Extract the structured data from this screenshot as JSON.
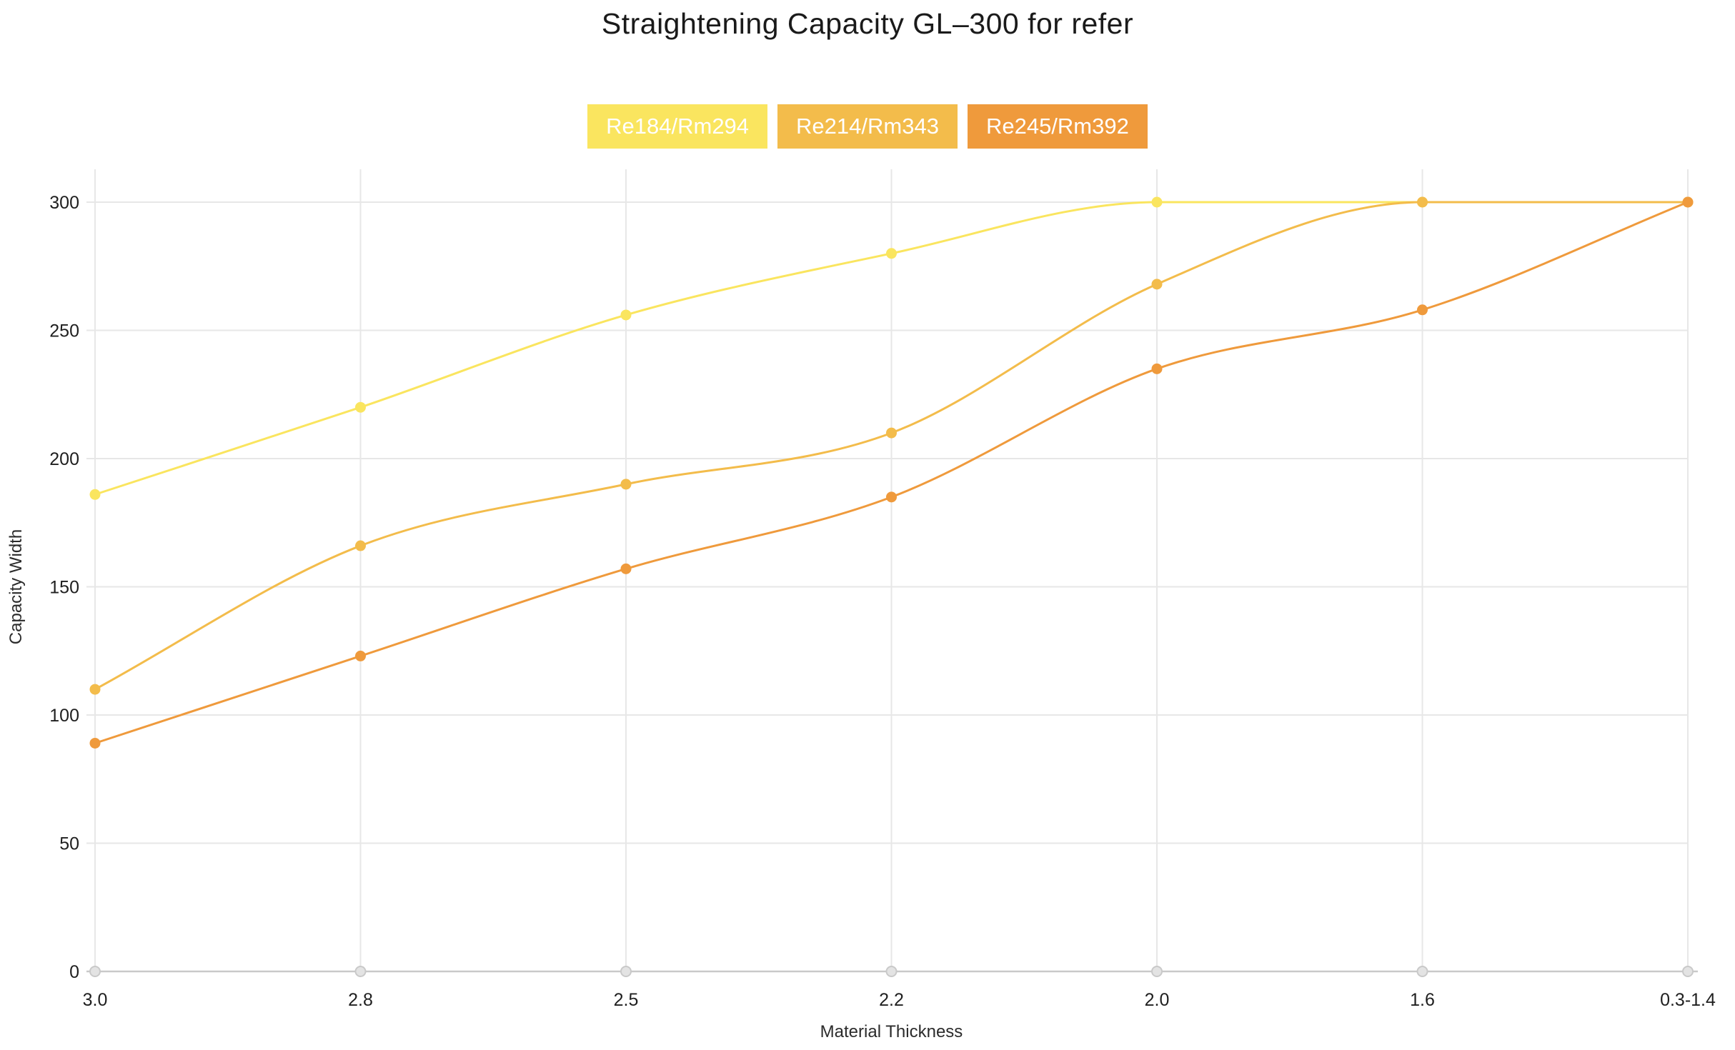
{
  "chart_data": {
    "type": "line",
    "title": "Straightening Capacity GL–300 for refer",
    "xlabel": "Material Thickness",
    "ylabel": "Capacity Width",
    "categories": [
      "3.0",
      "2.8",
      "2.5",
      "2.2",
      "2.0",
      "1.6",
      "0.3-1.4"
    ],
    "series": [
      {
        "name": "Re184/Rm294",
        "color": "#FAE55F",
        "values": [
          186,
          220,
          256,
          280,
          300,
          300,
          300
        ]
      },
      {
        "name": "Re214/Rm343",
        "color": "#F3BC4B",
        "values": [
          110,
          166,
          190,
          210,
          268,
          300,
          300
        ]
      },
      {
        "name": "Re245/Rm392",
        "color": "#EF9A3C",
        "values": [
          89,
          123,
          157,
          185,
          235,
          258,
          300
        ]
      }
    ],
    "ylim": [
      0,
      300
    ],
    "yticks": [
      0,
      50,
      100,
      150,
      200,
      250,
      300
    ],
    "grid": true,
    "smooth": true,
    "legend_position": "top"
  },
  "colors": {
    "background": "#ffffff",
    "grid_line": "#e7e7e7",
    "axis_line": "#c9c9c9",
    "axis_dot_fill": "#e3e3e3",
    "axis_dot_stroke": "#c9c9c9",
    "title_text": "#1a1a1a",
    "tick_text": "#1f1f1f",
    "legend_text": "#ffffff"
  }
}
